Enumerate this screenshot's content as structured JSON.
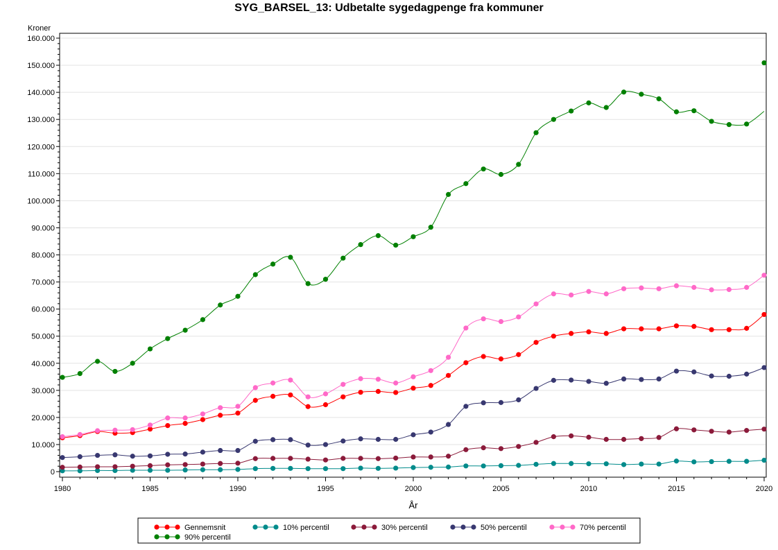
{
  "chart_data": {
    "type": "line",
    "title": "SYG_BARSEL_13:  Udbetalte sygedagpenge fra kommuner",
    "xlabel": "År",
    "ylabel": "Kroner",
    "xlim": [
      1980,
      2020
    ],
    "ylim": [
      0,
      160000
    ],
    "x_ticks": [
      "1980",
      "1985",
      "1990",
      "1995",
      "2000",
      "2005",
      "2010",
      "2015",
      "2020"
    ],
    "y_ticks": [
      "0",
      "10.000",
      "20.000",
      "30.000",
      "40.000",
      "50.000",
      "60.000",
      "70.000",
      "80.000",
      "90.000",
      "100.000",
      "110.000",
      "120.000",
      "130.000",
      "140.000",
      "150.000",
      "160.000"
    ],
    "grid": true,
    "legend_position": "bottom",
    "x": [
      1980,
      1981,
      1982,
      1983,
      1984,
      1985,
      1986,
      1987,
      1988,
      1989,
      1990,
      1991,
      1992,
      1993,
      1994,
      1995,
      1996,
      1997,
      1998,
      1999,
      2000,
      2001,
      2002,
      2003,
      2004,
      2005,
      2006,
      2007,
      2008,
      2009,
      2010,
      2011,
      2012,
      2013,
      2014,
      2015,
      2016,
      2017,
      2018,
      2019,
      2020
    ],
    "series": [
      {
        "name": "Gennemsnit",
        "color": "#ff0000",
        "values": [
          12500,
          13300,
          14800,
          14200,
          14400,
          15700,
          17000,
          17800,
          19200,
          20800,
          21600,
          26300,
          27800,
          28300,
          24000,
          24700,
          27600,
          29300,
          29600,
          29200,
          30800,
          31800,
          35500,
          40200,
          42500,
          41600,
          43200,
          47700,
          50000,
          51000,
          51600,
          51000,
          52700,
          52700,
          52700,
          53800,
          53600,
          52400,
          52400,
          52900,
          58000
        ]
      },
      {
        "name": "10% percentil",
        "color": "#008b8b",
        "values": [
          300,
          300,
          400,
          400,
          500,
          500,
          500,
          600,
          700,
          700,
          800,
          1100,
          1200,
          1200,
          1100,
          1100,
          1100,
          1300,
          1200,
          1300,
          1500,
          1600,
          1700,
          2100,
          2100,
          2200,
          2300,
          2700,
          3000,
          3000,
          2900,
          2900,
          2600,
          2800,
          2800,
          3900,
          3600,
          3700,
          3800,
          3800,
          4200
        ]
      },
      {
        "name": "30% percentil",
        "color": "#8b1a3a",
        "values": [
          1600,
          1700,
          1800,
          1800,
          2000,
          2200,
          2500,
          2600,
          2800,
          3000,
          3100,
          4800,
          4900,
          4900,
          4600,
          4300,
          4900,
          4900,
          4800,
          5000,
          5400,
          5400,
          5700,
          8100,
          8800,
          8500,
          9300,
          10800,
          12900,
          13200,
          12700,
          11900,
          11900,
          12200,
          12600,
          15800,
          15400,
          14900,
          14600,
          15200,
          15700
        ]
      },
      {
        "name": "50% percentil",
        "color": "#383870",
        "values": [
          5200,
          5500,
          6000,
          6200,
          5700,
          5800,
          6400,
          6500,
          7200,
          7800,
          7800,
          11200,
          11800,
          11800,
          9800,
          10000,
          11300,
          12100,
          11900,
          11900,
          13600,
          14600,
          17400,
          24100,
          25400,
          25500,
          26500,
          30700,
          33700,
          33800,
          33300,
          32600,
          34200,
          34000,
          34200,
          37100,
          36800,
          35300,
          35200,
          36000,
          38400
        ]
      },
      {
        "name": "70% percentil",
        "color": "#ff69c8",
        "values": [
          12900,
          13700,
          15100,
          15300,
          15500,
          17200,
          19800,
          19800,
          21300,
          23600,
          24100,
          31000,
          32700,
          33800,
          27600,
          28700,
          32200,
          34300,
          34100,
          32700,
          35000,
          37300,
          42200,
          53000,
          56400,
          55400,
          57100,
          61900,
          65600,
          65200,
          66500,
          65600,
          67500,
          67800,
          67500,
          68600,
          68000,
          67100,
          67200,
          68000,
          72500
        ]
      },
      {
        "name": "90% percentil",
        "color": "#008000",
        "values": [
          34800,
          36200,
          40700,
          37000,
          40000,
          45300,
          49100,
          52200,
          56100,
          61500,
          64700,
          72700,
          76600,
          79100,
          69400,
          71000,
          78800,
          83800,
          87100,
          83600,
          86700,
          90200,
          102300,
          106300,
          111700,
          109700,
          113400,
          125100,
          130000,
          133100,
          136100,
          134400,
          140100,
          139300,
          137600,
          132800,
          133200,
          129300,
          128100,
          128300,
          150900
        ]
      }
    ]
  }
}
